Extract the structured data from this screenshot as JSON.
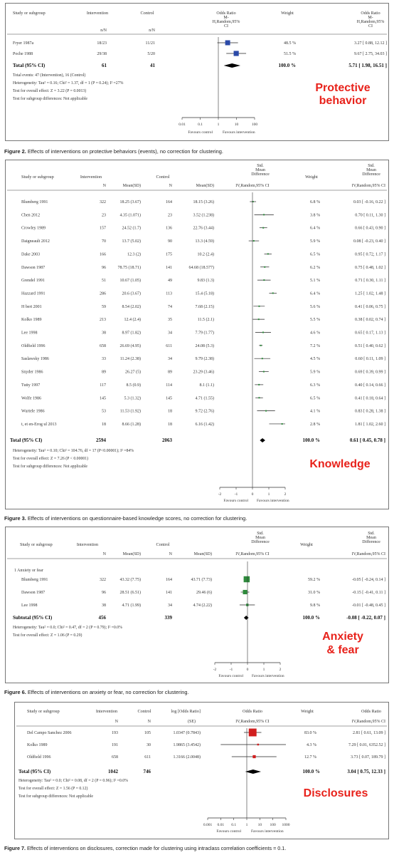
{
  "panels": [
    {
      "key": "p1",
      "headers": {
        "study": "Study or subgroup",
        "intervention": "Intervention",
        "control": "Control",
        "effect": "Odds Ratio\nM-\nH,Random,95%\nCI",
        "weight": "Weight",
        "effect_right": "Odds Ratio\nM-\nH,Random,95%\nCI",
        "sub_intervention": "n/N",
        "sub_control": "n/N"
      },
      "studies": [
        {
          "name": "Fryer 1987a",
          "i": "18/23",
          "c": "11/21",
          "w": "48.5 %",
          "est": "3.27 [ 0.88, 12.12 ]"
        },
        {
          "name": "Poche 1988",
          "i": "29/38",
          "c": "5/20",
          "w": "51.5 %",
          "est": "9.67 [ 2.75, 34.03 ]"
        }
      ],
      "total": {
        "name": "Total (95% CI)",
        "i": "61",
        "c": "41",
        "w": "100.0 %",
        "est": "5.71 [ 1.98, 16.51 ]"
      },
      "stats": [
        "Total events: 47 (Intervention), 16 (Control)",
        "Heterogeneity: Tau² = 0.16; Chi² = 1.37, df = 1 (P = 0.24); I² =27%",
        "Test for overall effect: Z = 3.22 (P = 0.0013)",
        "Test for subgroup differences: Not applicable"
      ],
      "axis": {
        "ticks": [
          "0.01",
          "0.1",
          "1",
          "10",
          "100"
        ],
        "left": "Favours control",
        "right": "Favours intervention"
      },
      "highlight": [
        "Protective",
        "behavior"
      ],
      "caption_bold": "Figure 2.",
      "caption": " Effects of interventions on protective behaviors (events), no correction for clustering."
    },
    {
      "key": "p2",
      "headers": {
        "study": "Study or subgroup",
        "intervention": "Intervention",
        "control": "Control",
        "effect": "Std.\nMean\nDifference",
        "weight": "Weight",
        "effect_right": "Std.\nMean\nDifference",
        "sub_n": "N",
        "sub_mean": "Mean(SD)",
        "sub_cn": "N",
        "sub_cmean": "Mean(SD)",
        "sub_effect": "IV,Random,95% CI",
        "sub_effect_right": "IV,Random,95% CI"
      },
      "studies": [
        {
          "name": "Blumberg 1991",
          "n": "322",
          "m": "18.25 (3.67)",
          "cn": "164",
          "cm": "18.15 (3.26)",
          "w": "6.8 %",
          "est": "0.03 [ -0.16, 0.22 ]"
        },
        {
          "name": "Chen 2012",
          "n": "23",
          "m": "4.35 (1.071)",
          "cn": "23",
          "cm": "3.52 (1.238)",
          "w": "3.8 %",
          "est": "0.70 [ 0.11, 1.30 ]"
        },
        {
          "name": "Crowley 1989",
          "n": "157",
          "m": "24.52 (1.7)",
          "cn": "136",
          "cm": "22.76 (3.44)",
          "w": "6.4 %",
          "est": "0.66 [ 0.43, 0.90 ]"
        },
        {
          "name": "Daigneault 2012",
          "n": "70",
          "m": "13.7 (5.02)",
          "cn": "90",
          "cm": "13.3 (4.59)",
          "w": "5.9 %",
          "est": "0.08 [ -0.23, 0.40 ]"
        },
        {
          "name": "Dake 2003",
          "n": "166",
          "m": "12.3 (2)",
          "cn": "175",
          "cm": "10.2 (2.4)",
          "w": "6.5 %",
          "est": "0.95 [ 0.72, 1.17 ]"
        },
        {
          "name": "Dawson 1987",
          "n": "96",
          "m": "78.75 (18.71)",
          "cn": "141",
          "cm": "64.68 (18.577)",
          "w": "6.2 %",
          "est": "0.75 [ 0.48, 1.02 ]"
        },
        {
          "name": "Grendel 1991",
          "n": "51",
          "m": "10.67 (1.05)",
          "cn": "49",
          "cm": "9.83 (1.3)",
          "w": "5.1 %",
          "est": "0.71 [ 0.30, 1.11 ]"
        },
        {
          "name": "Hazzard 1991",
          "n": "286",
          "m": "20.6 (3.67)",
          "cn": "113",
          "cm": "15.4 (5.18)",
          "w": "6.4 %",
          "est": "1.25 [ 1.02, 1.48 ]"
        },
        {
          "name": "H   bert 2001",
          "n": "59",
          "m": "8.54 (2.02)",
          "cn": "74",
          "cm": "7.68 (2.15)",
          "w": "5.6 %",
          "est": "0.41 [ 0.06, 0.75 ]"
        },
        {
          "name": "Kolko 1989",
          "n": "213",
          "m": "12.4 (2.4)",
          "cn": "35",
          "cm": "11.5 (2.1)",
          "w": "5.5 %",
          "est": "0.38 [ 0.02, 0.74 ]"
        },
        {
          "name": "Lee 1998",
          "n": "38",
          "m": "8.97 (1.82)",
          "cn": "34",
          "cm": "7.79 (1.77)",
          "w": "4.6 %",
          "est": "0.65 [ 0.17, 1.13 ]"
        },
        {
          "name": "Oldfield 1996",
          "n": "658",
          "m": "26.69 (4.95)",
          "cn": "611",
          "cm": "24.08 (5.3)",
          "w": "7.2 %",
          "est": "0.51 [ 0.40, 0.62 ]"
        },
        {
          "name": "Saslawsky 1986",
          "n": "33",
          "m": "11.24 (2.38)",
          "cn": "34",
          "cm": "9.79 (2.38)",
          "w": "4.5 %",
          "est": "0.60 [ 0.11, 1.09 ]"
        },
        {
          "name": "Snyder 1986",
          "n": "89",
          "m": "26.27 (5)",
          "cn": "89",
          "cm": "23.29 (3.46)",
          "w": "5.9 %",
          "est": "0.69 [ 0.39, 0.99 ]"
        },
        {
          "name": "Tutty 1997",
          "n": "117",
          "m": "8.5 (0.9)",
          "cn": "114",
          "cm": "8.1 (1.1)",
          "w": "6.3 %",
          "est": "0.40 [ 0.14, 0.66 ]"
        },
        {
          "name": "Wolfe 1986",
          "n": "145",
          "m": "5.3 (1.32)",
          "cn": "145",
          "cm": "4.71 (1.55)",
          "w": "6.5 %",
          "est": "0.41 [ 0.18, 0.64 ]"
        },
        {
          "name": "Wurtele 1986",
          "n": "53",
          "m": "11.53 (1.92)",
          "cn": "18",
          "cm": "9.72 (2.76)",
          "w": "4.1 %",
          "est": "0.83 [ 0.28, 1.38 ]"
        },
        {
          "name": "t, et en-Erog ul 2013",
          "n": "18",
          "m": "8.66 (1.28)",
          "cn": "18",
          "cm": "6.16 (1.42)",
          "w": "2.8 %",
          "est": "1.81 [ 1.02, 2.60 ]"
        }
      ],
      "total": {
        "name": "Total (95% CI)",
        "n": "2594",
        "cn": "2063",
        "w": "100.0 %",
        "est": "0.61 [ 0.45, 0.78 ]"
      },
      "stats": [
        "Heterogeneity: Tau² = 0.10; Chi² = 104.76, df = 17 (P<0.00001); I² =84%",
        "Test for overall effect: Z = 7.26 (P < 0.00001)",
        "Test for subgroup differences: Not applicable"
      ],
      "axis": {
        "ticks": [
          "-2",
          "-1",
          "0",
          "1",
          "2"
        ],
        "left": "Favours control",
        "right": "Favours intervention"
      },
      "highlight": [
        "Knowledge"
      ],
      "caption_bold": "Figure 3.",
      "caption": " Effects of interventions on questionnaire-based knowledge scores, no correction for clustering."
    },
    {
      "key": "p3",
      "headers": {
        "study": "Study or subgroup",
        "intervention": "Intervention",
        "control": "Control",
        "effect": "Std.\nMean\nDifference",
        "weight": "Weight",
        "effect_right": "Std.\nMean\nDifference",
        "sub_n": "N",
        "sub_mean": "Mean(SD)",
        "sub_cn": "N",
        "sub_cmean": "Mean(SD)",
        "sub_effect": "IV,Random,95% CI",
        "sub_effect_right": "IV,Random,95% CI"
      },
      "subgroup_label": "1 Anxiety or fear",
      "studies": [
        {
          "name": "Blumberg 1991",
          "n": "322",
          "m": "43.32 (7.75)",
          "cn": "164",
          "cm": "43.71 (7.73)",
          "w": "59.2 %",
          "est": "-0.05 [ -0.24, 0.14 ]"
        },
        {
          "name": "Dawson 1987",
          "n": "96",
          "m": "28.51 (6.51)",
          "cn": "141",
          "cm": "29.46 (6)",
          "w": "31.0 %",
          "est": "-0.15 [ -0.41, 0.11 ]"
        },
        {
          "name": "Lee 1998",
          "n": "38",
          "m": "4.71 (1.99)",
          "cn": "34",
          "cm": "4.74 (2.22)",
          "w": "9.8 %",
          "est": "-0.01 [ -0.48, 0.45 ]"
        }
      ],
      "total": {
        "name": "Subtotal (95% CI)",
        "n": "456",
        "cn": "339",
        "w": "100.0 %",
        "est": "-0.08 [ -0.22, 0.07 ]"
      },
      "stats": [
        "Heterogeneity: Tau² = 0.0; Chi² = 0.47, df = 2 (P = 0.79); I² =0.0%",
        "Test for overall effect: Z = 1.06 (P = 0.29)"
      ],
      "axis": {
        "ticks": [
          "-2",
          "-1",
          "0",
          "1",
          "2"
        ],
        "left": "Favours control",
        "right": "Favours intervention"
      },
      "highlight": [
        "Anxiety",
        "& fear"
      ],
      "caption_bold": "Figure 6.",
      "caption": " Effects of interventions on anxiety or fear, no correction for clustering."
    },
    {
      "key": "p4",
      "headers": {
        "study": "Study or subgroup",
        "intervention": "Intervention",
        "control": "Control",
        "logor": "log [Odds Ratio]",
        "effect": "Odds Ratio",
        "weight": "Weight",
        "effect_right": "Odds Ratio",
        "sub_n": "N",
        "sub_cn": "N",
        "sub_se": "(SE)",
        "sub_effect": "IV,Random,95% CI",
        "sub_effect_right": "IV,Random,95% CI"
      },
      "studies": [
        {
          "name": "Del Campo Sanchez 2006",
          "n": "193",
          "cn": "105",
          "lo": "1.0347 (0.7843)",
          "w": "83.0 %",
          "est": "2.81 [ 0.61, 13.09 ]"
        },
        {
          "name": "Kolko 1989",
          "n": "191",
          "cn": "30",
          "lo": "1.9865 (3.4542)",
          "w": "4.3 %",
          "est": "7.29 [ 0.01, 6352.52 ]"
        },
        {
          "name": "Oldfield 1996",
          "n": "658",
          "cn": "611",
          "lo": "1.3166 (2.0048)",
          "w": "12.7 %",
          "est": "3.73 [ 0.07, 189.79 ]"
        }
      ],
      "total": {
        "name": "Total (95% CI)",
        "n": "1042",
        "cn": "746",
        "w": "100.0 %",
        "est": "3.04 [ 0.75, 12.33 ]"
      },
      "stats": [
        "Heterogeneity: Tau² = 0.0; Chi² = 0.08, df = 2 (P = 0.96); I² =0.0%",
        "Test for overall effect: Z = 1.56 (P = 0.12)",
        "Test for subgroup differences: Not applicable"
      ],
      "axis": {
        "ticks": [
          "0.001",
          "0.01",
          "0.1",
          "1",
          "10",
          "100",
          "1000"
        ],
        "left": "Favours control",
        "right": "Favours intervention"
      },
      "highlight": [
        "Disclosures"
      ],
      "caption_bold": "Figure 7.",
      "caption": " Effects of interventions on disclosures, correction made for clustering using intraclass correlation coefficients = 0.1."
    }
  ],
  "colors": {
    "p1_marker": "#2b4aa8",
    "p2_marker": "#2e8b3c",
    "p3_marker": "#2e8b3c",
    "p4_marker": "#d11f1f",
    "highlight": "#e8221b",
    "frame": "#555555"
  },
  "chart_data": [
    {
      "type": "forest",
      "measure": "Odds Ratio (M-H, Random, 95% CI)",
      "scale": "log",
      "xlim": [
        0.01,
        100
      ],
      "studies": [
        {
          "name": "Fryer 1987a",
          "estimate": 3.27,
          "ci": [
            0.88,
            12.12
          ],
          "weight": 48.5
        },
        {
          "name": "Poche 1988",
          "estimate": 9.67,
          "ci": [
            2.75,
            34.03
          ],
          "weight": 51.5
        }
      ],
      "pooled": {
        "estimate": 5.71,
        "ci": [
          1.98,
          16.51
        ]
      }
    },
    {
      "type": "forest",
      "measure": "Std. Mean Difference (IV, Random, 95% CI)",
      "scale": "linear",
      "xlim": [
        -2,
        2
      ],
      "studies": [
        {
          "name": "Blumberg 1991",
          "estimate": 0.03,
          "ci": [
            -0.16,
            0.22
          ],
          "weight": 6.8
        },
        {
          "name": "Chen 2012",
          "estimate": 0.7,
          "ci": [
            0.11,
            1.3
          ],
          "weight": 3.8
        },
        {
          "name": "Crowley 1989",
          "estimate": 0.66,
          "ci": [
            0.43,
            0.9
          ],
          "weight": 6.4
        },
        {
          "name": "Daigneault 2012",
          "estimate": 0.08,
          "ci": [
            -0.23,
            0.4
          ],
          "weight": 5.9
        },
        {
          "name": "Dake 2003",
          "estimate": 0.95,
          "ci": [
            0.72,
            1.17
          ],
          "weight": 6.5
        },
        {
          "name": "Dawson 1987",
          "estimate": 0.75,
          "ci": [
            0.48,
            1.02
          ],
          "weight": 6.2
        },
        {
          "name": "Grendel 1991",
          "estimate": 0.71,
          "ci": [
            0.3,
            1.11
          ],
          "weight": 5.1
        },
        {
          "name": "Hazzard 1991",
          "estimate": 1.25,
          "ci": [
            1.02,
            1.48
          ],
          "weight": 6.4
        },
        {
          "name": "H   bert 2001",
          "estimate": 0.41,
          "ci": [
            0.06,
            0.75
          ],
          "weight": 5.6
        },
        {
          "name": "Kolko 1989",
          "estimate": 0.38,
          "ci": [
            0.02,
            0.74
          ],
          "weight": 5.5
        },
        {
          "name": "Lee 1998",
          "estimate": 0.65,
          "ci": [
            0.17,
            1.13
          ],
          "weight": 4.6
        },
        {
          "name": "Oldfield 1996",
          "estimate": 0.51,
          "ci": [
            0.4,
            0.62
          ],
          "weight": 7.2
        },
        {
          "name": "Saslawsky 1986",
          "estimate": 0.6,
          "ci": [
            0.11,
            1.09
          ],
          "weight": 4.5
        },
        {
          "name": "Snyder 1986",
          "estimate": 0.69,
          "ci": [
            0.39,
            0.99
          ],
          "weight": 5.9
        },
        {
          "name": "Tutty 1997",
          "estimate": 0.4,
          "ci": [
            0.14,
            0.66
          ],
          "weight": 6.3
        },
        {
          "name": "Wolfe 1986",
          "estimate": 0.41,
          "ci": [
            0.18,
            0.64
          ],
          "weight": 6.5
        },
        {
          "name": "Wurtele 1986",
          "estimate": 0.83,
          "ci": [
            0.28,
            1.38
          ],
          "weight": 4.1
        },
        {
          "name": "t, et en-Erog ul 2013",
          "estimate": 1.81,
          "ci": [
            1.02,
            2.6
          ],
          "weight": 2.8
        }
      ],
      "pooled": {
        "estimate": 0.61,
        "ci": [
          0.45,
          0.78
        ]
      }
    },
    {
      "type": "forest",
      "measure": "Std. Mean Difference (IV, Random, 95% CI)",
      "scale": "linear",
      "xlim": [
        -2,
        2
      ],
      "studies": [
        {
          "name": "Blumberg 1991",
          "estimate": -0.05,
          "ci": [
            -0.24,
            0.14
          ],
          "weight": 59.2
        },
        {
          "name": "Dawson 1987",
          "estimate": -0.15,
          "ci": [
            -0.41,
            0.11
          ],
          "weight": 31.0
        },
        {
          "name": "Lee 1998",
          "estimate": -0.01,
          "ci": [
            -0.48,
            0.45
          ],
          "weight": 9.8
        }
      ],
      "pooled": {
        "estimate": -0.08,
        "ci": [
          -0.22,
          0.07
        ]
      }
    },
    {
      "type": "forest",
      "measure": "Odds Ratio (IV, Random, 95% CI)",
      "scale": "log",
      "xlim": [
        0.001,
        1000
      ],
      "studies": [
        {
          "name": "Del Campo Sanchez 2006",
          "estimate": 2.81,
          "ci": [
            0.61,
            13.09
          ],
          "weight": 83.0
        },
        {
          "name": "Kolko 1989",
          "estimate": 7.29,
          "ci": [
            0.01,
            6352.52
          ],
          "weight": 4.3
        },
        {
          "name": "Oldfield 1996",
          "estimate": 3.73,
          "ci": [
            0.07,
            189.79
          ],
          "weight": 12.7
        }
      ],
      "pooled": {
        "estimate": 3.04,
        "ci": [
          0.75,
          12.33
        ]
      }
    }
  ]
}
